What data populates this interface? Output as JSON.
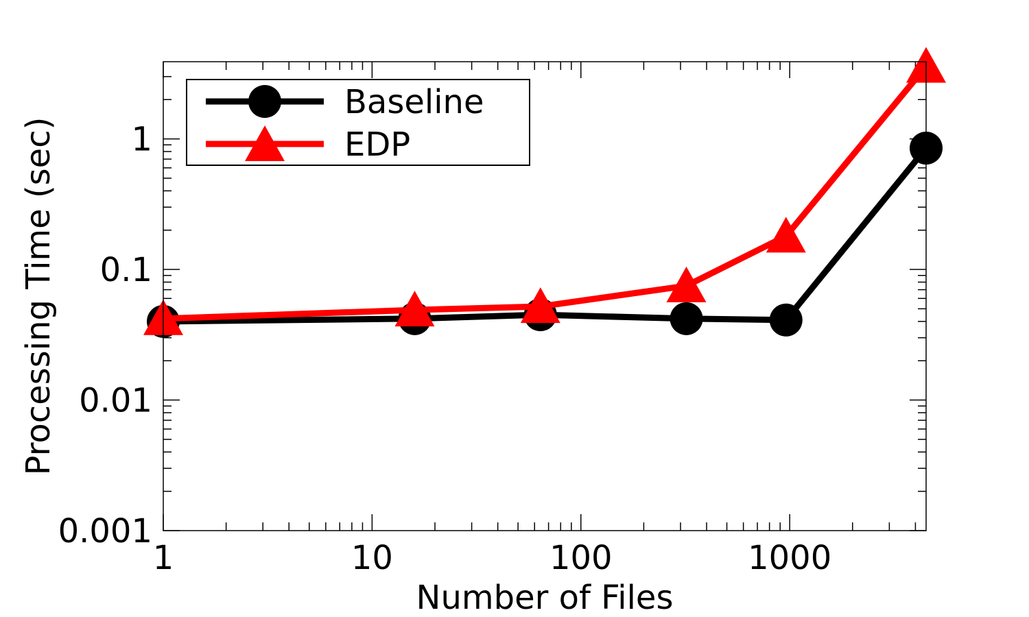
{
  "chart_data": {
    "type": "line",
    "title": "",
    "xlabel": "Number of Files",
    "ylabel": "Processing Time (sec)",
    "xscale": "log",
    "yscale": "log",
    "xlim": [
      1,
      4500
    ],
    "ylim": [
      0.001,
      3.9
    ],
    "xticks": [
      1,
      10,
      100,
      1000
    ],
    "xtick_labels": [
      "1",
      "10",
      "100",
      "1000"
    ],
    "yticks": [
      0.001,
      0.01,
      0.1,
      1
    ],
    "ytick_labels": [
      "0.001",
      "0.01",
      "0.1",
      "1"
    ],
    "grid": false,
    "legend_position": "top-left",
    "x": [
      1,
      16,
      64,
      320,
      960,
      4500
    ],
    "series": [
      {
        "name": "Baseline",
        "color": "#000000",
        "marker": "circle",
        "values": [
          0.04,
          0.042,
          0.045,
          0.042,
          0.041,
          0.85
        ]
      },
      {
        "name": "EDP",
        "color": "#ff0000",
        "marker": "triangle",
        "values": [
          0.042,
          0.049,
          0.052,
          0.075,
          0.18,
          3.6
        ]
      }
    ]
  }
}
